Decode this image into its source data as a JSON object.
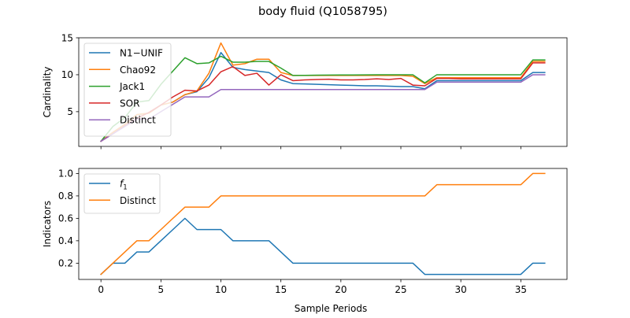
{
  "figure_title": "body fluid (Q1058795)",
  "chart_data": [
    {
      "type": "line",
      "ylabel": "Cardinality",
      "xlabel": "",
      "xlim": [
        -1.85,
        38.85
      ],
      "ylim": [
        0.3,
        15
      ],
      "xticks": [
        0,
        5,
        10,
        15,
        20,
        25,
        30,
        35
      ],
      "show_xtick_labels": false,
      "yticks": [
        5,
        10,
        15
      ],
      "legend_position": "upper-left",
      "x": [
        0,
        1,
        2,
        3,
        4,
        5,
        6,
        7,
        8,
        9,
        10,
        11,
        12,
        13,
        14,
        15,
        16,
        17,
        18,
        19,
        20,
        21,
        22,
        23,
        24,
        25,
        26,
        27,
        28,
        29,
        30,
        31,
        32,
        33,
        34,
        35,
        36,
        37
      ],
      "series": [
        {
          "name": "N1−UNIF",
          "color": "#1f77b4",
          "values": [
            1,
            2.2,
            3.3,
            4.6,
            4.8,
            5.9,
            6.3,
            7.3,
            7.7,
            9.6,
            13.0,
            11.0,
            10.7,
            10.5,
            10.3,
            9.3,
            8.8,
            8.75,
            8.7,
            8.65,
            8.6,
            8.55,
            8.5,
            8.5,
            8.45,
            8.4,
            8.4,
            8.1,
            9.2,
            9.2,
            9.2,
            9.2,
            9.2,
            9.2,
            9.2,
            9.2,
            10.3,
            10.3
          ]
        },
        {
          "name": "Chao92",
          "color": "#ff7f0e",
          "values": [
            1,
            2.2,
            3.3,
            4.6,
            4.8,
            5.9,
            6.3,
            7.3,
            7.8,
            10.2,
            14.3,
            11.3,
            11.5,
            12.1,
            12.1,
            10.3,
            9.9,
            9.9,
            9.9,
            9.9,
            9.9,
            9.9,
            9.9,
            9.9,
            9.9,
            9.9,
            9.8,
            8.8,
            9.6,
            9.6,
            9.6,
            9.6,
            9.6,
            9.6,
            9.6,
            9.6,
            11.8,
            11.8
          ]
        },
        {
          "name": "Jack1",
          "color": "#2ca02c",
          "values": [
            1,
            3.0,
            4.2,
            6.3,
            6.5,
            8.7,
            10.5,
            12.3,
            11.5,
            11.6,
            12.5,
            11.7,
            11.7,
            11.8,
            11.8,
            10.9,
            9.9,
            9.92,
            9.94,
            9.95,
            9.96,
            9.97,
            9.98,
            9.99,
            10.0,
            10.0,
            10.0,
            8.9,
            10.0,
            10.0,
            10.0,
            10.0,
            10.0,
            10.0,
            10.0,
            10.0,
            12.0,
            12.0
          ]
        },
        {
          "name": "SOR",
          "color": "#d62728",
          "values": [
            1,
            2.0,
            3.1,
            4.1,
            4.9,
            5.9,
            7.0,
            7.9,
            7.8,
            8.6,
            10.4,
            11.1,
            9.9,
            10.2,
            8.6,
            10.0,
            9.2,
            9.3,
            9.35,
            9.4,
            9.3,
            9.3,
            9.35,
            9.45,
            9.35,
            9.5,
            8.6,
            8.5,
            9.5,
            9.5,
            9.45,
            9.45,
            9.45,
            9.45,
            9.45,
            9.45,
            11.6,
            11.6
          ]
        },
        {
          "name": "Distinct",
          "color": "#9467bd",
          "values": [
            1,
            2,
            3,
            4,
            4,
            5,
            6,
            7,
            7,
            7,
            8,
            8,
            8,
            8,
            8,
            8,
            8,
            8,
            8,
            8,
            8,
            8,
            8,
            8,
            8,
            8,
            8,
            8,
            9,
            9,
            9,
            9,
            9,
            9,
            9,
            9,
            10,
            10
          ]
        }
      ]
    },
    {
      "type": "line",
      "ylabel": "Indicators",
      "xlabel": "Sample Periods",
      "xlim": [
        -1.85,
        38.85
      ],
      "ylim": [
        0.055,
        1.045
      ],
      "xticks": [
        0,
        5,
        10,
        15,
        20,
        25,
        30,
        35
      ],
      "show_xtick_labels": true,
      "yticks": [
        0.2,
        0.4,
        0.6,
        0.8,
        1.0
      ],
      "ytick_labels": [
        "0.2",
        "0.4",
        "0.6",
        "0.8",
        "1.0"
      ],
      "legend_position": "upper-left",
      "x": [
        0,
        1,
        2,
        3,
        4,
        5,
        6,
        7,
        8,
        9,
        10,
        11,
        12,
        13,
        14,
        15,
        16,
        17,
        18,
        19,
        20,
        21,
        22,
        23,
        24,
        25,
        26,
        27,
        28,
        29,
        30,
        31,
        32,
        33,
        34,
        35,
        36,
        37
      ],
      "series": [
        {
          "name": "f",
          "name_subscript": "1",
          "color": "#1f77b4",
          "values": [
            0.1,
            0.2,
            0.2,
            0.3,
            0.3,
            0.4,
            0.5,
            0.6,
            0.5,
            0.5,
            0.5,
            0.4,
            0.4,
            0.4,
            0.4,
            0.3,
            0.2,
            0.2,
            0.2,
            0.2,
            0.2,
            0.2,
            0.2,
            0.2,
            0.2,
            0.2,
            0.2,
            0.1,
            0.1,
            0.1,
            0.1,
            0.1,
            0.1,
            0.1,
            0.1,
            0.1,
            0.2,
            0.2
          ]
        },
        {
          "name": "Distinct",
          "color": "#ff7f0e",
          "values": [
            0.1,
            0.2,
            0.3,
            0.4,
            0.4,
            0.5,
            0.6,
            0.7,
            0.7,
            0.7,
            0.8,
            0.8,
            0.8,
            0.8,
            0.8,
            0.8,
            0.8,
            0.8,
            0.8,
            0.8,
            0.8,
            0.8,
            0.8,
            0.8,
            0.8,
            0.8,
            0.8,
            0.8,
            0.9,
            0.9,
            0.9,
            0.9,
            0.9,
            0.9,
            0.9,
            0.9,
            1.0,
            1.0
          ]
        }
      ]
    }
  ]
}
